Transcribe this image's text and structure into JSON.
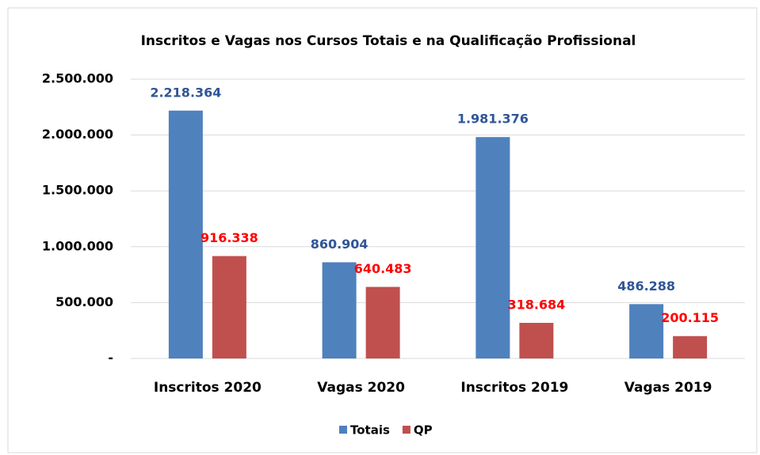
{
  "chart_data": {
    "type": "bar",
    "title": "Inscritos e Vagas nos Cursos Totais e na Qualificação Profissional",
    "categories": [
      "Inscritos 2020",
      "Vagas 2020",
      "Inscritos 2019",
      "Vagas 2019"
    ],
    "series": [
      {
        "name": "Totais",
        "color": "#4f81bd",
        "label_color": "#2f5597",
        "values": [
          2218364,
          860904,
          1981376,
          486288
        ],
        "value_labels": [
          "2.218.364",
          "860.904",
          "1.981.376",
          "486.288"
        ]
      },
      {
        "name": "QP",
        "color": "#c0504d",
        "label_color": "#ff0000",
        "values": [
          916338,
          640483,
          318684,
          200115
        ],
        "value_labels": [
          "916.338",
          "640.483",
          "318.684",
          "200.115"
        ]
      }
    ],
    "ylim": [
      0,
      2500000
    ],
    "yticks": [
      {
        "value": 0,
        "label": "-"
      },
      {
        "value": 500000,
        "label": "500.000"
      },
      {
        "value": 1000000,
        "label": "1.000.000"
      },
      {
        "value": 1500000,
        "label": "1.500.000"
      },
      {
        "value": 2000000,
        "label": "2.000.000"
      },
      {
        "value": 2500000,
        "label": "2.500.000"
      }
    ],
    "grid": true,
    "legend": "bottom"
  }
}
